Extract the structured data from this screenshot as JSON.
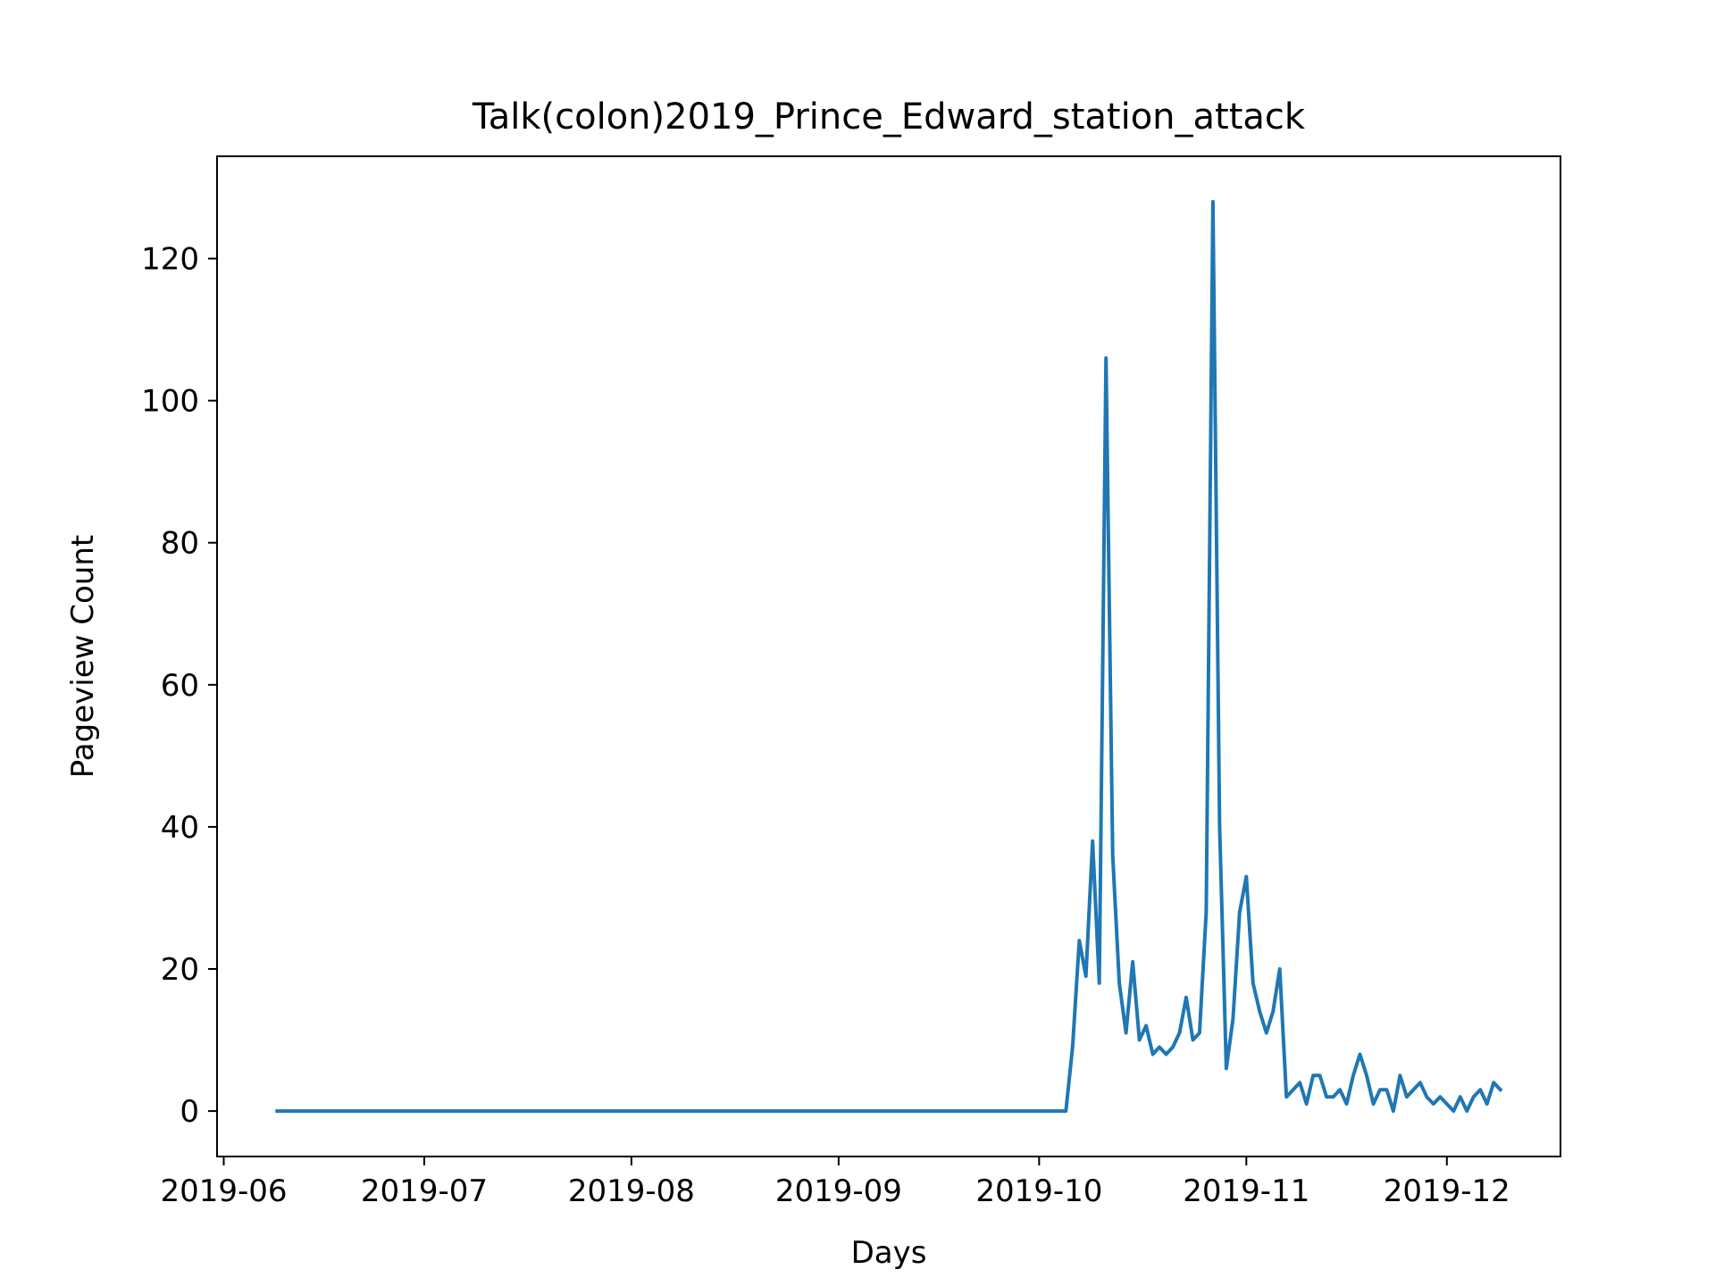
{
  "chart_data": {
    "type": "line",
    "title": "Talk(colon)2019_Prince_Edward_station_attack",
    "xlabel": "Days",
    "ylabel": "Pageview Count",
    "x_tick_labels": [
      "2019-06",
      "2019-07",
      "2019-08",
      "2019-09",
      "2019-10",
      "2019-11",
      "2019-12"
    ],
    "x_tick_dates": [
      "2019-06-01",
      "2019-07-01",
      "2019-08-01",
      "2019-09-01",
      "2019-10-01",
      "2019-11-01",
      "2019-12-01"
    ],
    "y_ticks": [
      0,
      20,
      40,
      60,
      80,
      100,
      120
    ],
    "xlim": [
      "2019-05-31",
      "2019-12-18"
    ],
    "ylim": [
      -6.4,
      134.4
    ],
    "grid": false,
    "line_color": "#1f77b4",
    "series": [
      {
        "x": [
          "2019-06-09",
          "2019-10-05",
          "2019-10-06",
          "2019-10-07",
          "2019-10-08",
          "2019-10-09",
          "2019-10-10",
          "2019-10-11",
          "2019-10-12",
          "2019-10-13",
          "2019-10-14",
          "2019-10-15",
          "2019-10-16",
          "2019-10-17",
          "2019-10-18",
          "2019-10-19",
          "2019-10-20",
          "2019-10-21",
          "2019-10-22",
          "2019-10-23",
          "2019-10-24",
          "2019-10-25",
          "2019-10-26",
          "2019-10-27",
          "2019-10-28",
          "2019-10-29",
          "2019-10-30",
          "2019-10-31",
          "2019-11-01",
          "2019-11-02",
          "2019-11-03",
          "2019-11-04",
          "2019-11-05",
          "2019-11-06",
          "2019-11-07",
          "2019-11-08",
          "2019-11-09",
          "2019-11-10",
          "2019-11-11",
          "2019-11-12",
          "2019-11-13",
          "2019-11-14",
          "2019-11-15",
          "2019-11-16",
          "2019-11-17",
          "2019-11-18",
          "2019-11-19",
          "2019-11-20",
          "2019-11-21",
          "2019-11-22",
          "2019-11-23",
          "2019-11-24",
          "2019-11-25",
          "2019-11-26",
          "2019-11-27",
          "2019-11-28",
          "2019-11-29",
          "2019-11-30",
          "2019-12-01",
          "2019-12-02",
          "2019-12-03",
          "2019-12-04",
          "2019-12-05",
          "2019-12-06",
          "2019-12-07",
          "2019-12-08",
          "2019-12-09"
        ],
        "values": [
          0,
          0,
          9,
          24,
          19,
          38,
          18,
          106,
          36,
          18,
          11,
          21,
          10,
          12,
          8,
          9,
          8,
          9,
          11,
          16,
          10,
          11,
          28,
          128,
          40,
          6,
          13,
          28,
          33,
          18,
          14,
          11,
          14,
          20,
          2,
          3,
          4,
          1,
          5,
          5,
          2,
          2,
          3,
          1,
          5,
          8,
          5,
          1,
          3,
          3,
          0,
          5,
          2,
          3,
          4,
          2,
          1,
          2,
          1,
          0,
          2,
          0,
          2,
          3,
          1,
          4,
          3
        ]
      }
    ]
  }
}
